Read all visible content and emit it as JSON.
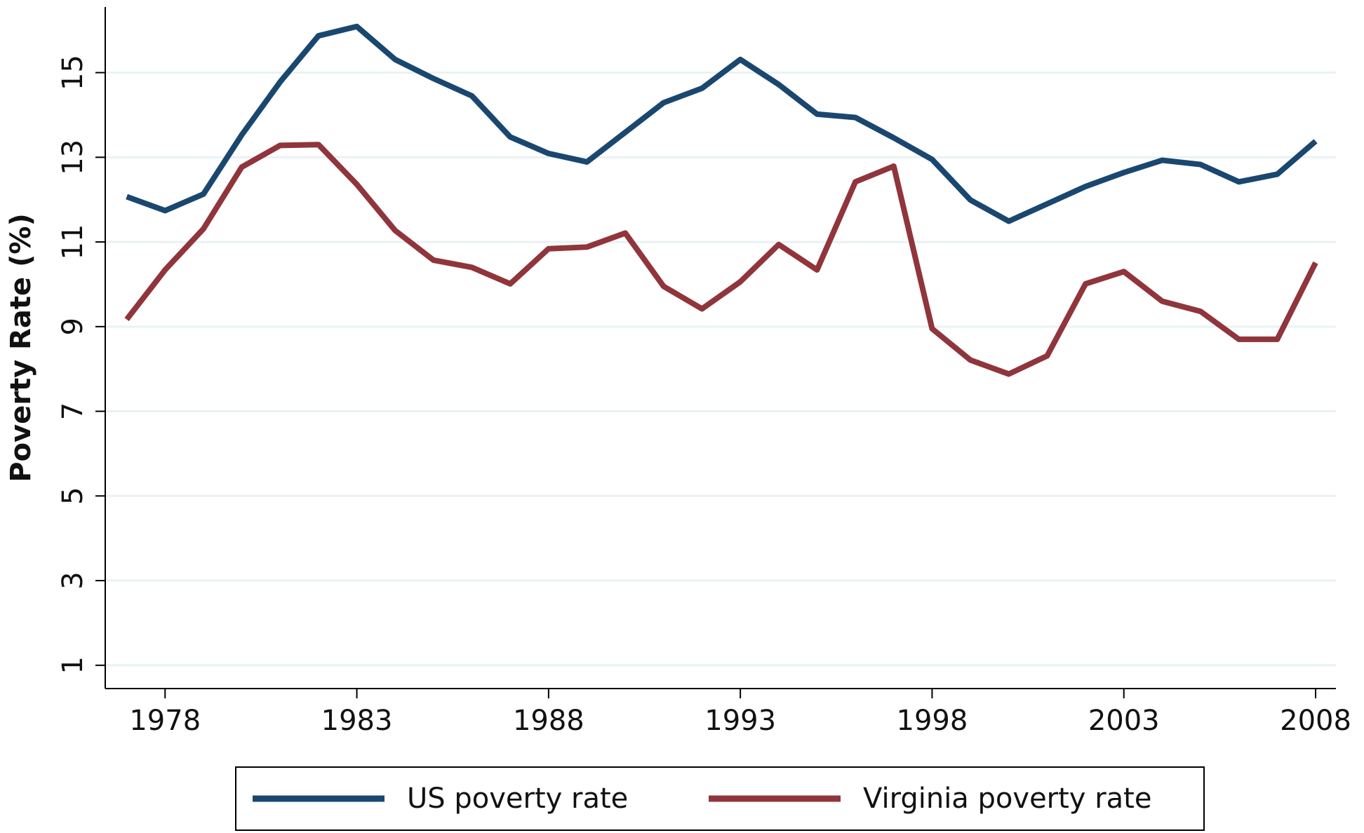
{
  "chart_data": {
    "type": "line",
    "y_label": "Poverty Rate (%)",
    "x": [
      1977,
      1978,
      1979,
      1980,
      1981,
      1982,
      1983,
      1984,
      1985,
      1986,
      1987,
      1988,
      1989,
      1990,
      1991,
      1992,
      1993,
      1994,
      1995,
      1996,
      1997,
      1998,
      1999,
      2000,
      2001,
      2002,
      2003,
      2004,
      2005,
      2006,
      2007,
      2008
    ],
    "series": [
      {
        "name": "US poverty rate",
        "color": "#1a476f",
        "values": [
          12.07,
          11.74,
          12.13,
          13.53,
          14.78,
          15.87,
          16.09,
          15.31,
          14.86,
          14.45,
          13.48,
          13.09,
          12.89,
          13.59,
          14.29,
          14.63,
          15.31,
          14.72,
          14.02,
          13.94,
          13.46,
          12.95,
          11.99,
          11.49,
          11.9,
          12.31,
          12.64,
          12.93,
          12.83,
          12.42,
          12.6,
          13.38
        ]
      },
      {
        "name": "Virginia poverty rate",
        "color": "#90353b",
        "values": [
          9.17,
          10.34,
          11.31,
          12.77,
          13.28,
          13.3,
          12.36,
          11.27,
          10.57,
          10.4,
          10.01,
          10.84,
          10.88,
          11.21,
          9.95,
          9.42,
          10.06,
          10.94,
          10.34,
          12.42,
          12.79,
          8.95,
          8.21,
          7.88,
          8.31,
          10.01,
          10.3,
          9.6,
          9.36,
          8.7,
          8.7,
          10.51
        ]
      }
    ],
    "xlim": [
      1976.44,
      2008.53
    ],
    "xticks": [
      1978,
      1983,
      1988,
      1993,
      1998,
      2003,
      2008
    ],
    "ylim": [
      0.45,
      16.55
    ],
    "yticks": [
      1,
      3,
      5,
      7,
      9,
      11,
      13,
      15
    ],
    "grid": true,
    "legend": "bottom"
  }
}
